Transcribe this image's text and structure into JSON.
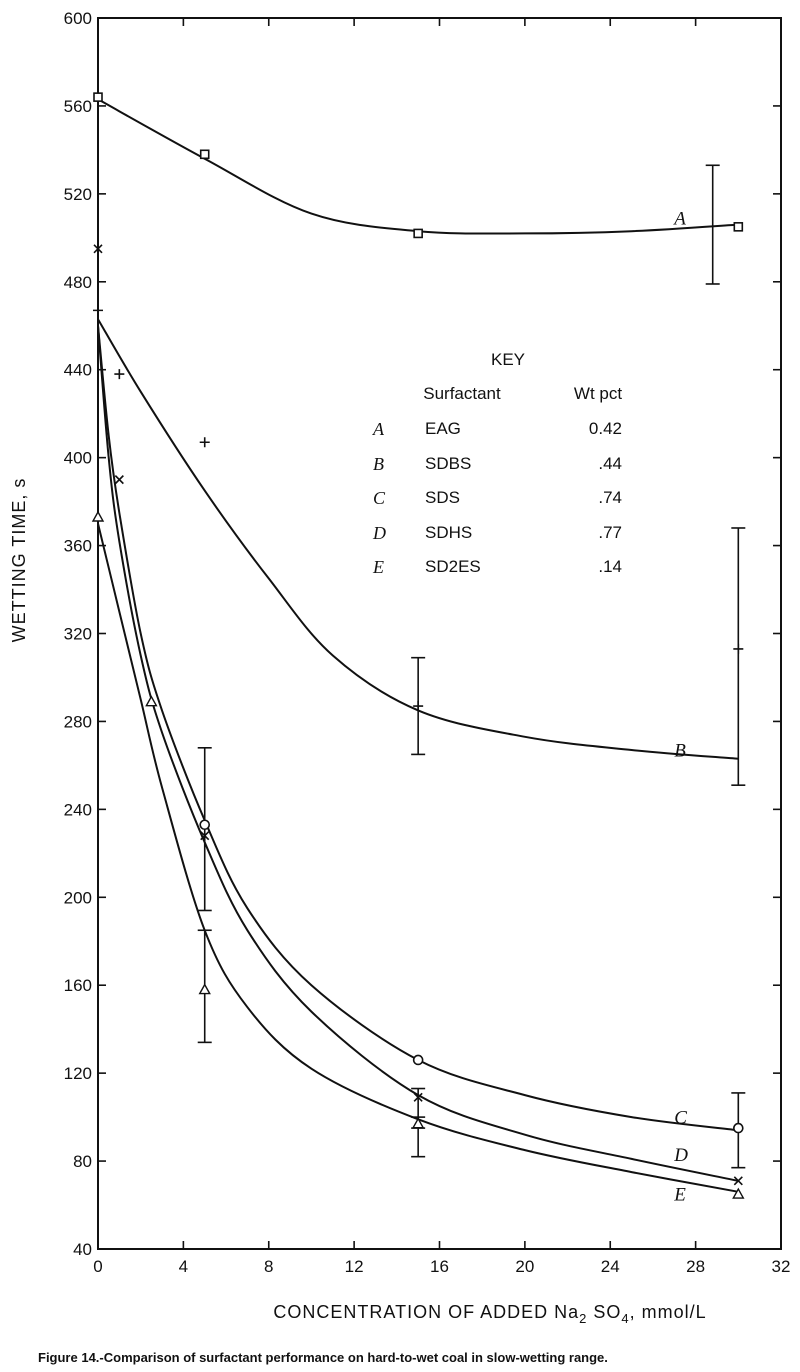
{
  "chart_data": {
    "type": "line",
    "title": "",
    "xlabel": "CONCENTRATION OF ADDED Na2 SO4, mmol/L",
    "xlabel_parts": {
      "main": "CONCENTRATION OF ADDED Na",
      "sub1": "2",
      "mid": " SO",
      "sub2": "4",
      "end": ", mmol/L"
    },
    "ylabel": "WETTING TIME, s",
    "xlim": [
      0,
      32
    ],
    "ylim": [
      40,
      600
    ],
    "x_ticks": [
      0,
      4,
      8,
      12,
      16,
      20,
      24,
      28,
      32
    ],
    "y_ticks": [
      40,
      80,
      120,
      160,
      200,
      240,
      280,
      320,
      360,
      400,
      440,
      480,
      520,
      560,
      600
    ],
    "grid": false,
    "series": [
      {
        "name": "A",
        "marker": "square",
        "label_pos": [
          27,
          506
        ],
        "points": [
          [
            0,
            564
          ],
          [
            5,
            538
          ],
          [
            15,
            502
          ],
          [
            30,
            505
          ]
        ],
        "curve": [
          [
            0,
            563
          ],
          [
            5,
            536
          ],
          [
            10,
            511
          ],
          [
            15,
            503
          ],
          [
            20,
            502
          ],
          [
            25,
            503
          ],
          [
            30,
            506
          ]
        ],
        "errorbars": [
          [
            28.8,
            479,
            533
          ]
        ]
      },
      {
        "name": "B",
        "marker": "plus",
        "label_pos": [
          27,
          264
        ],
        "points": [
          [
            0,
            467
          ],
          [
            1,
            438
          ],
          [
            5,
            407
          ],
          [
            15,
            287
          ],
          [
            30,
            313
          ]
        ],
        "curve": [
          [
            0,
            463
          ],
          [
            2,
            430
          ],
          [
            5,
            385
          ],
          [
            8,
            345
          ],
          [
            11,
            310
          ],
          [
            15,
            285
          ],
          [
            20,
            273
          ],
          [
            25,
            267
          ],
          [
            30,
            263
          ]
        ],
        "errorbars": [
          [
            15,
            265,
            309
          ],
          [
            30,
            251,
            368
          ]
        ]
      },
      {
        "name": "C",
        "marker": "circle",
        "label_pos": [
          27,
          97
        ],
        "points": [
          [
            5,
            233
          ],
          [
            15,
            126
          ],
          [
            30,
            95
          ]
        ],
        "curve": [
          [
            0,
            460
          ],
          [
            0.5,
            410
          ],
          [
            1,
            375
          ],
          [
            2,
            320
          ],
          [
            3,
            285
          ],
          [
            5,
            235
          ],
          [
            7,
            195
          ],
          [
            10,
            160
          ],
          [
            15,
            126
          ],
          [
            20,
            110
          ],
          [
            25,
            100
          ],
          [
            30,
            94
          ]
        ],
        "errorbars": [
          [
            30,
            77,
            111
          ]
        ]
      },
      {
        "name": "D",
        "marker": "x",
        "label_pos": [
          27,
          80
        ],
        "points": [
          [
            0,
            495
          ],
          [
            1,
            390
          ],
          [
            5,
            228
          ],
          [
            15,
            109
          ],
          [
            30,
            71
          ]
        ],
        "curve": [
          [
            0,
            460
          ],
          [
            0.5,
            400
          ],
          [
            1,
            362
          ],
          [
            2,
            310
          ],
          [
            3,
            275
          ],
          [
            5,
            225
          ],
          [
            7,
            185
          ],
          [
            10,
            148
          ],
          [
            15,
            110
          ],
          [
            20,
            92
          ],
          [
            25,
            81
          ],
          [
            30,
            71
          ]
        ],
        "errorbars": [
          [
            5,
            194,
            268
          ],
          [
            15,
            95,
            113
          ]
        ]
      },
      {
        "name": "E",
        "marker": "triangle",
        "label_pos": [
          27,
          62
        ],
        "points": [
          [
            0,
            373
          ],
          [
            2.5,
            289
          ],
          [
            5,
            158
          ],
          [
            15,
            97
          ],
          [
            30,
            65
          ]
        ],
        "curve": [
          [
            0,
            370
          ],
          [
            1,
            330
          ],
          [
            2,
            290
          ],
          [
            3,
            250
          ],
          [
            5,
            185
          ],
          [
            7,
            150
          ],
          [
            10,
            122
          ],
          [
            15,
            99
          ],
          [
            20,
            85
          ],
          [
            25,
            75
          ],
          [
            30,
            66
          ]
        ],
        "errorbars": [
          [
            5,
            134,
            185
          ],
          [
            15,
            82,
            100
          ]
        ]
      }
    ],
    "legend": {
      "placement": "center-right",
      "title": "KEY",
      "col_headers": [
        "Surfactant",
        "Wt pct"
      ],
      "rows": [
        {
          "letter": "A",
          "name": "EAG",
          "wt": "0.42"
        },
        {
          "letter": "B",
          "name": "SDBS",
          "wt": ".44"
        },
        {
          "letter": "C",
          "name": "SDS",
          "wt": ".74"
        },
        {
          "letter": "D",
          "name": "SDHS",
          "wt": ".77"
        },
        {
          "letter": "E",
          "name": "SD2ES",
          "wt": ".14"
        }
      ]
    },
    "caption": "Figure 14.-Comparison of surfactant performance on hard-to-wet coal in slow-wetting range."
  }
}
